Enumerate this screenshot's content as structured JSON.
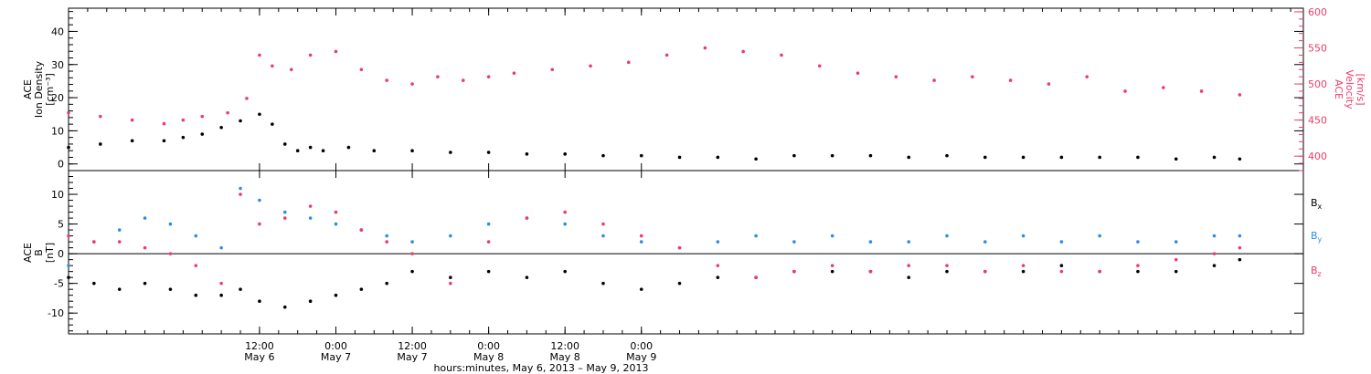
{
  "chart_data": [
    {
      "type": "scatter",
      "panel": "top",
      "x_range_hours": [
        -30,
        164
      ],
      "left_axis": {
        "label_lines": [
          "ACE",
          "Ion Density",
          "[cm⁻³]"
        ],
        "ylim": [
          -2,
          47
        ],
        "ticks": [
          0,
          10,
          20,
          30,
          40
        ]
      },
      "right_axis": {
        "label_lines": [
          "ACE",
          "Velocity",
          "[km/s]"
        ],
        "ylim": [
          380,
          605
        ],
        "ticks": [
          400,
          450,
          500,
          550,
          600
        ],
        "color": "#ee3b67"
      },
      "series": [
        {
          "color": "#000000",
          "axis": "left",
          "x": [
            -30,
            -25,
            -20,
            -15,
            -12,
            -9,
            -6,
            -3,
            0,
            2,
            4,
            6,
            8,
            10,
            14,
            18,
            24,
            30,
            36,
            42,
            48,
            54,
            60,
            66,
            72,
            78,
            84,
            90,
            96,
            102,
            108,
            114,
            120,
            126,
            132,
            138,
            144,
            150,
            154
          ],
          "y": [
            5,
            6,
            7,
            7,
            8,
            9,
            11,
            13,
            15,
            12,
            6,
            4,
            5,
            4,
            5,
            4,
            4,
            3.5,
            3.5,
            3,
            3,
            2.5,
            2.5,
            2,
            2,
            1.5,
            2.5,
            2.5,
            2.5,
            2,
            2.5,
            2,
            2,
            2,
            2,
            2,
            1.5,
            2,
            1.5
          ]
        },
        {
          "color": "#ee3b67",
          "axis": "right",
          "x": [
            -30,
            -25,
            -20,
            -15,
            -12,
            -9,
            -5,
            -2,
            0,
            2,
            5,
            8,
            12,
            16,
            20,
            24,
            28,
            32,
            36,
            40,
            46,
            52,
            58,
            64,
            70,
            76,
            82,
            88,
            94,
            100,
            106,
            112,
            118,
            124,
            130,
            136,
            142,
            148,
            154
          ],
          "y": [
            460,
            455,
            450,
            445,
            450,
            455,
            460,
            480,
            540,
            525,
            520,
            540,
            545,
            520,
            505,
            500,
            510,
            505,
            510,
            515,
            520,
            525,
            530,
            540,
            550,
            545,
            540,
            525,
            515,
            510,
            505,
            510,
            505,
            500,
            510,
            490,
            495,
            490,
            485
          ]
        }
      ]
    },
    {
      "type": "scatter",
      "panel": "bottom",
      "x_range_hours": [
        -30,
        164
      ],
      "left_axis": {
        "label_lines": [
          "ACE",
          "B",
          "[nT]"
        ],
        "ylim": [
          -13.5,
          14
        ],
        "ticks": [
          -10,
          -5,
          0,
          5,
          10
        ]
      },
      "zero_line": true,
      "series": [
        {
          "name": "Bx",
          "color": "#000000",
          "x": [
            -30,
            -26,
            -22,
            -18,
            -14,
            -10,
            -6,
            -3,
            0,
            4,
            8,
            12,
            16,
            20,
            24,
            30,
            36,
            42,
            48,
            54,
            60,
            66,
            72,
            78,
            84,
            90,
            96,
            102,
            108,
            114,
            120,
            126,
            132,
            138,
            144,
            150,
            154
          ],
          "y": [
            -4,
            -5,
            -6,
            -5,
            -6,
            -7,
            -7,
            -6,
            -8,
            -9,
            -8,
            -7,
            -6,
            -5,
            -3,
            -4,
            -3,
            -4,
            -3,
            -5,
            -6,
            -5,
            -4,
            -4,
            -3,
            -3,
            -3,
            -4,
            -3,
            -3,
            -3,
            -2,
            -3,
            -3,
            -3,
            -2,
            -1
          ]
        },
        {
          "name": "By",
          "color": "#2d8ee6",
          "x": [
            -30,
            -26,
            -22,
            -18,
            -14,
            -10,
            -6,
            -3,
            0,
            4,
            8,
            12,
            16,
            20,
            24,
            30,
            36,
            42,
            48,
            54,
            60,
            66,
            72,
            78,
            84,
            90,
            96,
            102,
            108,
            114,
            120,
            126,
            132,
            138,
            144,
            150,
            154
          ],
          "y": [
            -2,
            2,
            4,
            6,
            5,
            3,
            1,
            11,
            9,
            7,
            6,
            5,
            4,
            3,
            2,
            3,
            5,
            6,
            5,
            3,
            2,
            1,
            2,
            3,
            2,
            3,
            2,
            2,
            3,
            2,
            3,
            2,
            3,
            2,
            2,
            3,
            3
          ]
        },
        {
          "name": "Bz",
          "color": "#ee3b67",
          "x": [
            -30,
            -26,
            -22,
            -18,
            -14,
            -10,
            -6,
            -3,
            0,
            4,
            8,
            12,
            16,
            20,
            24,
            30,
            36,
            42,
            48,
            54,
            60,
            66,
            72,
            78,
            84,
            90,
            96,
            102,
            108,
            114,
            120,
            126,
            132,
            138,
            144,
            150,
            154
          ],
          "y": [
            3,
            2,
            2,
            1,
            0,
            -2,
            -5,
            10,
            5,
            6,
            8,
            7,
            4,
            2,
            0,
            -5,
            2,
            6,
            7,
            5,
            3,
            1,
            -2,
            -4,
            -3,
            -2,
            -3,
            -2,
            -2,
            -3,
            -2,
            -3,
            -3,
            -2,
            -1,
            0,
            1
          ]
        }
      ]
    }
  ],
  "legend": [
    {
      "main": "B",
      "sub": "x",
      "color": "#000000"
    },
    {
      "main": "B",
      "sub": "y",
      "color": "#2d8ee6"
    },
    {
      "main": "B",
      "sub": "z",
      "color": "#ee3b67"
    }
  ],
  "x_axis": {
    "ticks": [
      {
        "t": 0,
        "time": "12:00",
        "date": "May 6"
      },
      {
        "t": 12,
        "time": "0:00",
        "date": "May 7"
      },
      {
        "t": 24,
        "time": "12:00",
        "date": "May 7"
      },
      {
        "t": 36,
        "time": "0:00",
        "date": "May 8"
      },
      {
        "t": 48,
        "time": "12:00",
        "date": "May 8"
      },
      {
        "t": 60,
        "time": "0:00",
        "date": "May 9"
      }
    ],
    "title": "hours:minutes, May  6, 2013 – May  9, 2013"
  }
}
